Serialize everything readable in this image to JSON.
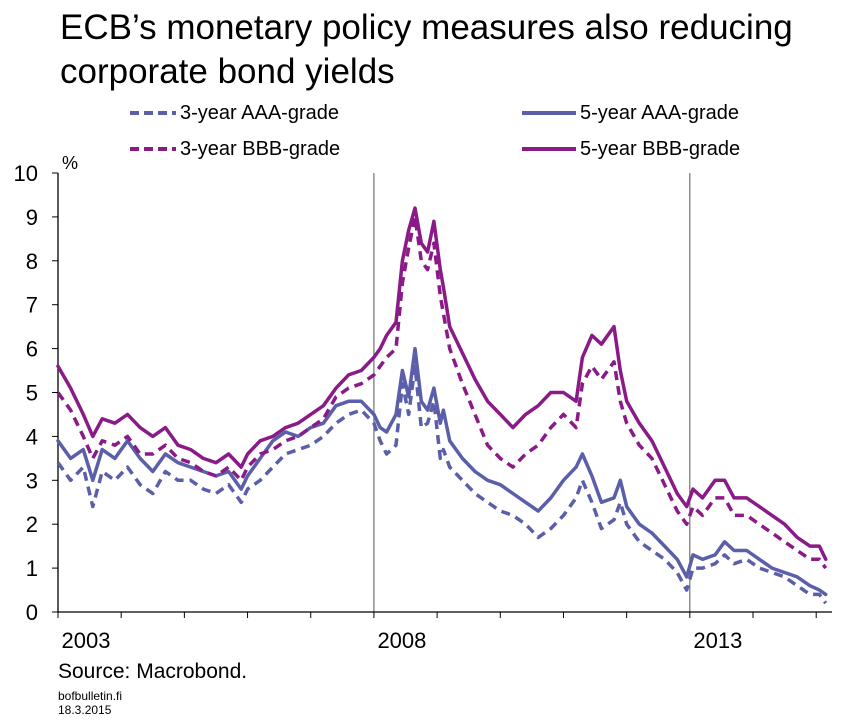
{
  "header": {
    "title_line1": "ECB’s monetary policy measures also reducing",
    "title_line2": "corporate bond yields"
  },
  "footer": {
    "source": "Source: Macrobond.",
    "site": "bofbulletin.fi",
    "date": "18.3.2015"
  },
  "chart_data": {
    "type": "line",
    "ylabel": "%",
    "ylim": [
      0,
      10
    ],
    "yticks": [
      0,
      1,
      2,
      3,
      4,
      5,
      6,
      7,
      8,
      9,
      10
    ],
    "xlim": [
      2003.0,
      2015.25
    ],
    "xtick_labels": [
      "2003",
      "2008",
      "2013"
    ],
    "xtick_values": [
      2003,
      2008,
      2013
    ],
    "grid": "vertical at 2008 and 2013",
    "legend_position": "top",
    "series": [
      {
        "name": "3-year AAA-grade",
        "color": "#5b5ea8",
        "style": "dashed",
        "points": [
          [
            2003.0,
            3.4
          ],
          [
            2003.2,
            3.0
          ],
          [
            2003.4,
            3.3
          ],
          [
            2003.55,
            2.4
          ],
          [
            2003.7,
            3.2
          ],
          [
            2003.9,
            3.0
          ],
          [
            2004.1,
            3.3
          ],
          [
            2004.3,
            2.9
          ],
          [
            2004.5,
            2.7
          ],
          [
            2004.7,
            3.2
          ],
          [
            2004.9,
            3.0
          ],
          [
            2005.1,
            3.0
          ],
          [
            2005.3,
            2.8
          ],
          [
            2005.5,
            2.7
          ],
          [
            2005.7,
            2.9
          ],
          [
            2005.9,
            2.5
          ],
          [
            2006.0,
            2.8
          ],
          [
            2006.2,
            3.0
          ],
          [
            2006.4,
            3.3
          ],
          [
            2006.6,
            3.6
          ],
          [
            2006.8,
            3.7
          ],
          [
            2007.0,
            3.8
          ],
          [
            2007.2,
            4.0
          ],
          [
            2007.4,
            4.3
          ],
          [
            2007.6,
            4.5
          ],
          [
            2007.8,
            4.6
          ],
          [
            2008.0,
            4.3
          ],
          [
            2008.1,
            3.9
          ],
          [
            2008.2,
            3.6
          ],
          [
            2008.35,
            3.8
          ],
          [
            2008.45,
            5.2
          ],
          [
            2008.55,
            4.5
          ],
          [
            2008.65,
            5.6
          ],
          [
            2008.75,
            4.2
          ],
          [
            2008.85,
            4.3
          ],
          [
            2008.95,
            4.8
          ],
          [
            2009.05,
            3.5
          ],
          [
            2009.1,
            3.7
          ],
          [
            2009.2,
            3.3
          ],
          [
            2009.4,
            3.0
          ],
          [
            2009.6,
            2.7
          ],
          [
            2009.8,
            2.5
          ],
          [
            2010.0,
            2.3
          ],
          [
            2010.2,
            2.2
          ],
          [
            2010.4,
            2.0
          ],
          [
            2010.6,
            1.7
          ],
          [
            2010.8,
            1.9
          ],
          [
            2011.0,
            2.2
          ],
          [
            2011.2,
            2.6
          ],
          [
            2011.3,
            3.0
          ],
          [
            2011.45,
            2.5
          ],
          [
            2011.6,
            1.9
          ],
          [
            2011.8,
            2.1
          ],
          [
            2011.9,
            2.5
          ],
          [
            2012.0,
            2.0
          ],
          [
            2012.2,
            1.6
          ],
          [
            2012.4,
            1.4
          ],
          [
            2012.6,
            1.2
          ],
          [
            2012.8,
            0.9
          ],
          [
            2012.95,
            0.5
          ],
          [
            2013.05,
            1.0
          ],
          [
            2013.2,
            1.0
          ],
          [
            2013.4,
            1.1
          ],
          [
            2013.55,
            1.3
          ],
          [
            2013.7,
            1.1
          ],
          [
            2013.9,
            1.2
          ],
          [
            2014.1,
            1.0
          ],
          [
            2014.3,
            0.9
          ],
          [
            2014.5,
            0.8
          ],
          [
            2014.7,
            0.6
          ],
          [
            2014.9,
            0.4
          ],
          [
            2015.05,
            0.4
          ],
          [
            2015.15,
            0.2
          ]
        ]
      },
      {
        "name": "5-year AAA-grade",
        "color": "#5b5ea8",
        "style": "solid",
        "points": [
          [
            2003.0,
            3.9
          ],
          [
            2003.2,
            3.5
          ],
          [
            2003.4,
            3.7
          ],
          [
            2003.55,
            3.0
          ],
          [
            2003.7,
            3.7
          ],
          [
            2003.9,
            3.5
          ],
          [
            2004.1,
            3.9
          ],
          [
            2004.3,
            3.5
          ],
          [
            2004.5,
            3.2
          ],
          [
            2004.7,
            3.6
          ],
          [
            2004.9,
            3.4
          ],
          [
            2005.1,
            3.3
          ],
          [
            2005.3,
            3.2
          ],
          [
            2005.5,
            3.1
          ],
          [
            2005.7,
            3.2
          ],
          [
            2005.9,
            2.8
          ],
          [
            2006.0,
            3.1
          ],
          [
            2006.2,
            3.5
          ],
          [
            2006.4,
            3.9
          ],
          [
            2006.6,
            4.1
          ],
          [
            2006.8,
            4.0
          ],
          [
            2007.0,
            4.2
          ],
          [
            2007.2,
            4.3
          ],
          [
            2007.4,
            4.7
          ],
          [
            2007.6,
            4.8
          ],
          [
            2007.8,
            4.8
          ],
          [
            2008.0,
            4.5
          ],
          [
            2008.1,
            4.2
          ],
          [
            2008.2,
            4.1
          ],
          [
            2008.35,
            4.5
          ],
          [
            2008.45,
            5.5
          ],
          [
            2008.55,
            4.9
          ],
          [
            2008.65,
            6.0
          ],
          [
            2008.75,
            4.8
          ],
          [
            2008.85,
            4.6
          ],
          [
            2008.95,
            5.1
          ],
          [
            2009.05,
            4.3
          ],
          [
            2009.1,
            4.6
          ],
          [
            2009.2,
            3.9
          ],
          [
            2009.4,
            3.5
          ],
          [
            2009.6,
            3.2
          ],
          [
            2009.8,
            3.0
          ],
          [
            2010.0,
            2.9
          ],
          [
            2010.2,
            2.7
          ],
          [
            2010.4,
            2.5
          ],
          [
            2010.6,
            2.3
          ],
          [
            2010.8,
            2.6
          ],
          [
            2011.0,
            3.0
          ],
          [
            2011.2,
            3.3
          ],
          [
            2011.3,
            3.6
          ],
          [
            2011.45,
            3.1
          ],
          [
            2011.6,
            2.5
          ],
          [
            2011.8,
            2.6
          ],
          [
            2011.9,
            3.0
          ],
          [
            2012.0,
            2.4
          ],
          [
            2012.2,
            2.0
          ],
          [
            2012.4,
            1.8
          ],
          [
            2012.6,
            1.5
          ],
          [
            2012.8,
            1.2
          ],
          [
            2012.95,
            0.8
          ],
          [
            2013.05,
            1.3
          ],
          [
            2013.2,
            1.2
          ],
          [
            2013.4,
            1.3
          ],
          [
            2013.55,
            1.6
          ],
          [
            2013.7,
            1.4
          ],
          [
            2013.9,
            1.4
          ],
          [
            2014.1,
            1.2
          ],
          [
            2014.3,
            1.0
          ],
          [
            2014.5,
            0.9
          ],
          [
            2014.7,
            0.8
          ],
          [
            2014.9,
            0.6
          ],
          [
            2015.05,
            0.5
          ],
          [
            2015.15,
            0.4
          ]
        ]
      },
      {
        "name": "3-year BBB-grade",
        "color": "#8b1a89",
        "style": "dashed",
        "points": [
          [
            2003.0,
            5.0
          ],
          [
            2003.2,
            4.6
          ],
          [
            2003.4,
            4.0
          ],
          [
            2003.55,
            3.5
          ],
          [
            2003.7,
            3.9
          ],
          [
            2003.9,
            3.8
          ],
          [
            2004.1,
            4.0
          ],
          [
            2004.3,
            3.6
          ],
          [
            2004.5,
            3.6
          ],
          [
            2004.7,
            3.8
          ],
          [
            2004.9,
            3.5
          ],
          [
            2005.1,
            3.4
          ],
          [
            2005.3,
            3.2
          ],
          [
            2005.5,
            3.1
          ],
          [
            2005.7,
            3.3
          ],
          [
            2005.9,
            3.0
          ],
          [
            2006.0,
            3.3
          ],
          [
            2006.2,
            3.6
          ],
          [
            2006.4,
            3.7
          ],
          [
            2006.6,
            3.9
          ],
          [
            2006.8,
            4.0
          ],
          [
            2007.0,
            4.2
          ],
          [
            2007.2,
            4.4
          ],
          [
            2007.4,
            4.9
          ],
          [
            2007.6,
            5.1
          ],
          [
            2007.8,
            5.2
          ],
          [
            2008.0,
            5.4
          ],
          [
            2008.1,
            5.6
          ],
          [
            2008.2,
            5.8
          ],
          [
            2008.35,
            6.0
          ],
          [
            2008.45,
            7.5
          ],
          [
            2008.55,
            8.3
          ],
          [
            2008.65,
            9.0
          ],
          [
            2008.75,
            8.0
          ],
          [
            2008.85,
            7.8
          ],
          [
            2008.95,
            8.4
          ],
          [
            2009.05,
            7.2
          ],
          [
            2009.1,
            6.8
          ],
          [
            2009.2,
            6.0
          ],
          [
            2009.4,
            5.2
          ],
          [
            2009.6,
            4.5
          ],
          [
            2009.8,
            3.8
          ],
          [
            2010.0,
            3.5
          ],
          [
            2010.2,
            3.3
          ],
          [
            2010.4,
            3.6
          ],
          [
            2010.6,
            3.8
          ],
          [
            2010.8,
            4.2
          ],
          [
            2011.0,
            4.5
          ],
          [
            2011.2,
            4.2
          ],
          [
            2011.3,
            5.2
          ],
          [
            2011.45,
            5.6
          ],
          [
            2011.6,
            5.3
          ],
          [
            2011.8,
            5.7
          ],
          [
            2011.9,
            4.8
          ],
          [
            2012.0,
            4.3
          ],
          [
            2012.2,
            3.8
          ],
          [
            2012.4,
            3.5
          ],
          [
            2012.6,
            2.9
          ],
          [
            2012.8,
            2.3
          ],
          [
            2012.95,
            2.0
          ],
          [
            2013.05,
            2.4
          ],
          [
            2013.2,
            2.2
          ],
          [
            2013.4,
            2.6
          ],
          [
            2013.55,
            2.6
          ],
          [
            2013.7,
            2.2
          ],
          [
            2013.9,
            2.2
          ],
          [
            2014.1,
            2.0
          ],
          [
            2014.3,
            1.8
          ],
          [
            2014.5,
            1.6
          ],
          [
            2014.7,
            1.4
          ],
          [
            2014.9,
            1.2
          ],
          [
            2015.05,
            1.2
          ],
          [
            2015.15,
            1.0
          ]
        ]
      },
      {
        "name": "5-year BBB-grade",
        "color": "#8b1a89",
        "style": "solid",
        "points": [
          [
            2003.0,
            5.6
          ],
          [
            2003.2,
            5.1
          ],
          [
            2003.4,
            4.5
          ],
          [
            2003.55,
            4.0
          ],
          [
            2003.7,
            4.4
          ],
          [
            2003.9,
            4.3
          ],
          [
            2004.1,
            4.5
          ],
          [
            2004.3,
            4.2
          ],
          [
            2004.5,
            4.0
          ],
          [
            2004.7,
            4.2
          ],
          [
            2004.9,
            3.8
          ],
          [
            2005.1,
            3.7
          ],
          [
            2005.3,
            3.5
          ],
          [
            2005.5,
            3.4
          ],
          [
            2005.7,
            3.6
          ],
          [
            2005.9,
            3.3
          ],
          [
            2006.0,
            3.6
          ],
          [
            2006.2,
            3.9
          ],
          [
            2006.4,
            4.0
          ],
          [
            2006.6,
            4.2
          ],
          [
            2006.8,
            4.3
          ],
          [
            2007.0,
            4.5
          ],
          [
            2007.2,
            4.7
          ],
          [
            2007.4,
            5.1
          ],
          [
            2007.6,
            5.4
          ],
          [
            2007.8,
            5.5
          ],
          [
            2008.0,
            5.8
          ],
          [
            2008.1,
            6.0
          ],
          [
            2008.2,
            6.3
          ],
          [
            2008.35,
            6.6
          ],
          [
            2008.45,
            8.0
          ],
          [
            2008.55,
            8.7
          ],
          [
            2008.65,
            9.2
          ],
          [
            2008.75,
            8.4
          ],
          [
            2008.85,
            8.2
          ],
          [
            2008.95,
            8.9
          ],
          [
            2009.05,
            7.8
          ],
          [
            2009.1,
            7.4
          ],
          [
            2009.2,
            6.5
          ],
          [
            2009.4,
            5.9
          ],
          [
            2009.6,
            5.3
          ],
          [
            2009.8,
            4.8
          ],
          [
            2010.0,
            4.5
          ],
          [
            2010.2,
            4.2
          ],
          [
            2010.4,
            4.5
          ],
          [
            2010.6,
            4.7
          ],
          [
            2010.8,
            5.0
          ],
          [
            2011.0,
            5.0
          ],
          [
            2011.2,
            4.8
          ],
          [
            2011.3,
            5.8
          ],
          [
            2011.45,
            6.3
          ],
          [
            2011.6,
            6.1
          ],
          [
            2011.8,
            6.5
          ],
          [
            2011.9,
            5.5
          ],
          [
            2012.0,
            4.8
          ],
          [
            2012.2,
            4.3
          ],
          [
            2012.4,
            3.9
          ],
          [
            2012.6,
            3.3
          ],
          [
            2012.8,
            2.7
          ],
          [
            2012.95,
            2.4
          ],
          [
            2013.05,
            2.8
          ],
          [
            2013.2,
            2.6
          ],
          [
            2013.4,
            3.0
          ],
          [
            2013.55,
            3.0
          ],
          [
            2013.7,
            2.6
          ],
          [
            2013.9,
            2.6
          ],
          [
            2014.1,
            2.4
          ],
          [
            2014.3,
            2.2
          ],
          [
            2014.5,
            2.0
          ],
          [
            2014.7,
            1.7
          ],
          [
            2014.9,
            1.5
          ],
          [
            2015.05,
            1.5
          ],
          [
            2015.15,
            1.2
          ]
        ]
      }
    ]
  }
}
